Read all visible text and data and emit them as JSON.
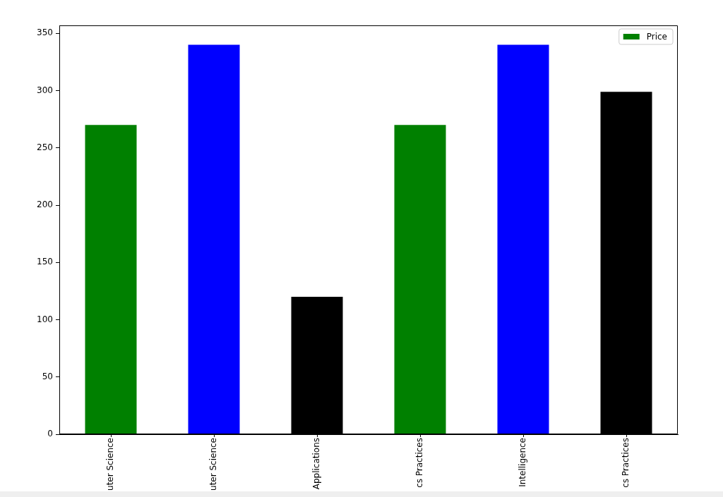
{
  "chart_data": {
    "type": "bar",
    "categories": [
      "uter Science",
      "uter Science",
      "Applications",
      "cs Practices",
      "Intelligence",
      "cs Practices"
    ],
    "series": [
      {
        "name": "Price",
        "colors": [
          "#008000",
          "#0000ff",
          "#000000",
          "#008000",
          "#0000ff",
          "#000000"
        ],
        "values": [
          270,
          340,
          120,
          270,
          340,
          299
        ]
      }
    ],
    "ylim": [
      0,
      357
    ],
    "yticks": [
      0,
      50,
      100,
      150,
      200,
      250,
      300,
      350
    ],
    "legend": "top right"
  }
}
